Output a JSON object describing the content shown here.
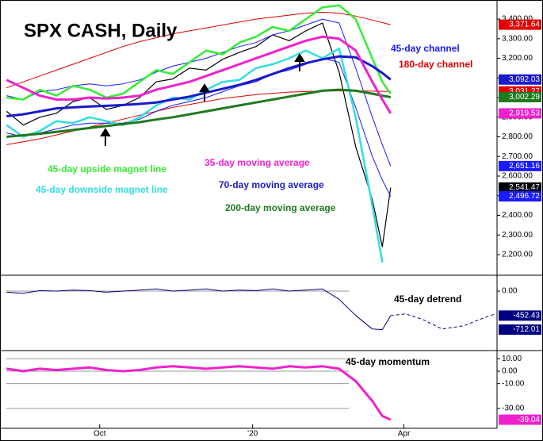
{
  "chart_data": [
    {
      "type": "line",
      "title": "SPX CASH, Daily",
      "x": [
        0,
        10,
        20,
        30,
        40,
        50,
        60,
        70,
        80,
        90,
        100,
        110,
        120,
        130,
        140,
        150,
        160,
        170,
        180,
        190,
        200,
        210,
        220,
        226,
        231
      ],
      "xlim": [
        -3,
        295
      ],
      "ylim": [
        2103,
        3477
      ],
      "yticks": [
        {
          "value": 2200,
          "label": "2,200.00"
        },
        {
          "value": 2300,
          "label": "2,300.00"
        },
        {
          "value": 2400,
          "label": "2,400.00"
        },
        {
          "value": 2500,
          "label": "2,500.00"
        },
        {
          "value": 2600,
          "label": "2,600.00"
        },
        {
          "value": 2700,
          "label": "2,700.00"
        },
        {
          "value": 2800,
          "label": "2,800.00"
        },
        {
          "value": 2900,
          "label": "2,900.00"
        },
        {
          "value": 3000,
          "label": "3,000.00"
        },
        {
          "value": 3100,
          "label": "3,100.00"
        },
        {
          "value": 3200,
          "label": "3,200.00"
        },
        {
          "value": 3300,
          "label": "3,300.00"
        },
        {
          "value": 3400,
          "label": "3,400.00"
        }
      ],
      "series": [
        {
          "color": "#000000",
          "width": 1.2,
          "values": [
            2930,
            2860,
            2900,
            2920,
            2980,
            3000,
            2940,
            2960,
            3000,
            3080,
            3095,
            3150,
            3140,
            3195,
            3230,
            3260,
            3320,
            3290,
            3340,
            3380,
            3130,
            2750,
            2480,
            2240,
            2541.47
          ],
          "value_labels": [
            null,
            null,
            null,
            null,
            null,
            null,
            null,
            null,
            null,
            null,
            null,
            null,
            null,
            null,
            null,
            null,
            null,
            null,
            null,
            null,
            null,
            null,
            null,
            null,
            "2,541.47"
          ]
        },
        {
          "name": "180-day channel",
          "color": "#e00000",
          "width": 1,
          "values": [
            3050,
            3080,
            3110,
            3140,
            3170,
            3200,
            3230,
            3260,
            3285,
            3305,
            3325,
            3340,
            3355,
            3370,
            3385,
            3400,
            3410,
            3420,
            3430,
            3435,
            3430,
            3415,
            3395,
            3382,
            3371.64
          ],
          "value_labels": [
            null,
            null,
            null,
            null,
            null,
            null,
            null,
            null,
            null,
            null,
            null,
            null,
            null,
            null,
            null,
            null,
            null,
            null,
            null,
            null,
            null,
            null,
            null,
            null,
            "3,371.64"
          ],
          "lower": [
            2760,
            2775,
            2790,
            2810,
            2830,
            2850,
            2870,
            2890,
            2910,
            2930,
            2950,
            2965,
            2980,
            2995,
            3005,
            3015,
            3022,
            3028,
            3031,
            3033,
            3034,
            3034,
            3033,
            3032,
            3031.27
          ],
          "lower_labels": [
            null,
            null,
            null,
            null,
            null,
            null,
            null,
            null,
            null,
            null,
            null,
            null,
            null,
            null,
            null,
            null,
            null,
            null,
            null,
            null,
            null,
            null,
            null,
            null,
            "3,031.27"
          ]
        },
        {
          "name": "45-day channel",
          "color": "#1a1aff",
          "width": 1,
          "values": [
            3010,
            2990,
            3030,
            3040,
            3060,
            3070,
            3060,
            3070,
            3090,
            3130,
            3160,
            3180,
            3200,
            3230,
            3260,
            3280,
            3320,
            3340,
            3370,
            3400,
            3380,
            3150,
            2900,
            2760,
            2651.16
          ],
          "value_labels": [
            null,
            null,
            null,
            null,
            null,
            null,
            null,
            null,
            null,
            null,
            null,
            null,
            null,
            null,
            null,
            null,
            null,
            null,
            null,
            null,
            null,
            null,
            null,
            null,
            "2,651.16"
          ],
          "lower": [
            2820,
            2800,
            2820,
            2840,
            2860,
            2870,
            2870,
            2870,
            2890,
            2930,
            2960,
            2980,
            3000,
            3030,
            3060,
            3080,
            3120,
            3140,
            3170,
            3200,
            3180,
            2950,
            2700,
            2580,
            2496.72
          ],
          "lower_labels": [
            null,
            null,
            null,
            null,
            null,
            null,
            null,
            null,
            null,
            null,
            null,
            null,
            null,
            null,
            null,
            null,
            null,
            null,
            null,
            null,
            null,
            null,
            null,
            null,
            "2,496.72"
          ]
        },
        {
          "name": "45-day upside magnet line",
          "color": "#33ee33",
          "width": 2.5,
          "values": [
            3000,
            2990,
            3040,
            3010,
            3060,
            3040,
            3000,
            3020,
            3080,
            3140,
            3120,
            3180,
            3240,
            3220,
            3280,
            3310,
            3360,
            3340,
            3400,
            3460,
            3470,
            3400,
            3200,
            3080,
            3020
          ]
        },
        {
          "name": "45-day downside magnet line",
          "color": "#33dddd",
          "width": 2.5,
          "values": [
            2860,
            2800,
            2830,
            2880,
            2870,
            2900,
            2880,
            2860,
            2900,
            2960,
            3000,
            2990,
            3040,
            3080,
            3090,
            3150,
            3170,
            3200,
            3240,
            3200,
            3250,
            2900,
            2450,
            2160,
            null
          ]
        },
        {
          "name": "200-day moving average",
          "color": "#1f7a1f",
          "width": 3,
          "values": [
            2800,
            2808,
            2816,
            2825,
            2835,
            2845,
            2855,
            2865,
            2875,
            2888,
            2900,
            2915,
            2930,
            2945,
            2960,
            2975,
            2990,
            3005,
            3020,
            3035,
            3040,
            3035,
            3020,
            3010,
            3002.29
          ],
          "value_labels": [
            null,
            null,
            null,
            null,
            null,
            null,
            null,
            null,
            null,
            null,
            null,
            null,
            null,
            null,
            null,
            null,
            null,
            null,
            null,
            null,
            null,
            null,
            null,
            null,
            "3,002.29"
          ]
        },
        {
          "name": "70-day moving average",
          "color": "#1a1acc",
          "width": 3,
          "values": [
            2905,
            2915,
            2930,
            2945,
            2950,
            2955,
            2958,
            2962,
            2968,
            2975,
            2990,
            3005,
            3025,
            3045,
            3065,
            3090,
            3120,
            3150,
            3175,
            3195,
            3210,
            3205,
            3160,
            3125,
            3092.03
          ],
          "value_labels": [
            null,
            null,
            null,
            null,
            null,
            null,
            null,
            null,
            null,
            null,
            null,
            null,
            null,
            null,
            null,
            null,
            null,
            null,
            null,
            null,
            null,
            null,
            null,
            null,
            "3,092.03"
          ]
        },
        {
          "name": "35-day moving average",
          "color": "#ee22cc",
          "width": 3,
          "values": [
            3090,
            3050,
            3010,
            2990,
            2990,
            3000,
            2995,
            3000,
            3010,
            3040,
            3060,
            3080,
            3110,
            3140,
            3170,
            3200,
            3230,
            3260,
            3290,
            3310,
            3300,
            3240,
            3080,
            2990,
            2919.53
          ],
          "value_labels": [
            null,
            null,
            null,
            null,
            null,
            null,
            null,
            null,
            null,
            null,
            null,
            null,
            null,
            null,
            null,
            null,
            null,
            null,
            null,
            null,
            null,
            null,
            null,
            null,
            "2,919.53"
          ]
        }
      ]
    },
    {
      "type": "line",
      "grid": true,
      "x": [
        0,
        10,
        20,
        30,
        40,
        50,
        60,
        70,
        80,
        90,
        100,
        110,
        120,
        130,
        140,
        150,
        160,
        170,
        180,
        190,
        200,
        210,
        220,
        226,
        231
      ],
      "xlim": [
        -3,
        295
      ],
      "ylim": [
        -1070,
        250
      ],
      "yticks": [
        {
          "value": 0,
          "label": "0.00"
        }
      ],
      "series": [
        {
          "name": "45-day detrend",
          "color": "#000080",
          "width": 1,
          "values": [
            -20,
            -40,
            10,
            0,
            20,
            10,
            -20,
            0,
            20,
            40,
            0,
            20,
            40,
            0,
            20,
            10,
            40,
            0,
            20,
            40,
            -150,
            -450,
            -700,
            -712.01,
            -452.43
          ],
          "value_labels": [
            null,
            null,
            null,
            null,
            null,
            null,
            null,
            null,
            null,
            null,
            null,
            null,
            null,
            null,
            null,
            null,
            null,
            null,
            null,
            null,
            null,
            null,
            null,
            "-712.01",
            "-452.43"
          ]
        },
        {
          "color": "#000080",
          "width": 1,
          "dash": true,
          "x": [
            231,
            240,
            250,
            262,
            275,
            285,
            294
          ],
          "values": [
            -452.43,
            -420,
            -520,
            -700,
            -640,
            -520,
            -420
          ]
        }
      ]
    },
    {
      "type": "line",
      "grid": true,
      "x": [
        0,
        10,
        20,
        30,
        40,
        50,
        60,
        70,
        80,
        90,
        100,
        110,
        120,
        130,
        140,
        150,
        160,
        170,
        180,
        190,
        200,
        210,
        220,
        226,
        231
      ],
      "xlim": [
        -3,
        295
      ],
      "ylim": [
        -46,
        16
      ],
      "yticks": [
        {
          "value": 10,
          "label": "10.00"
        },
        {
          "value": 0,
          "label": "0.00"
        },
        {
          "value": -10,
          "label": "-10.00"
        },
        {
          "value": -30,
          "label": "-30.00"
        }
      ],
      "xticks": [
        {
          "value": 56,
          "label": "Oct"
        },
        {
          "value": 148,
          "label": "'20"
        },
        {
          "value": 239,
          "label": "Apr"
        }
      ],
      "series": [
        {
          "name": "45-day momentum",
          "color": "#ee22cc",
          "width": 3,
          "values": [
            2,
            0,
            2,
            1,
            2,
            3,
            1,
            0,
            1,
            3,
            4,
            3,
            2,
            3,
            4,
            3,
            2,
            4,
            3,
            4,
            2,
            -8,
            -24,
            -36,
            -39.04
          ],
          "value_labels": [
            null,
            null,
            null,
            null,
            null,
            null,
            null,
            null,
            null,
            null,
            null,
            null,
            null,
            null,
            null,
            null,
            null,
            null,
            null,
            null,
            null,
            null,
            null,
            null,
            "-39.04"
          ]
        }
      ]
    }
  ]
}
